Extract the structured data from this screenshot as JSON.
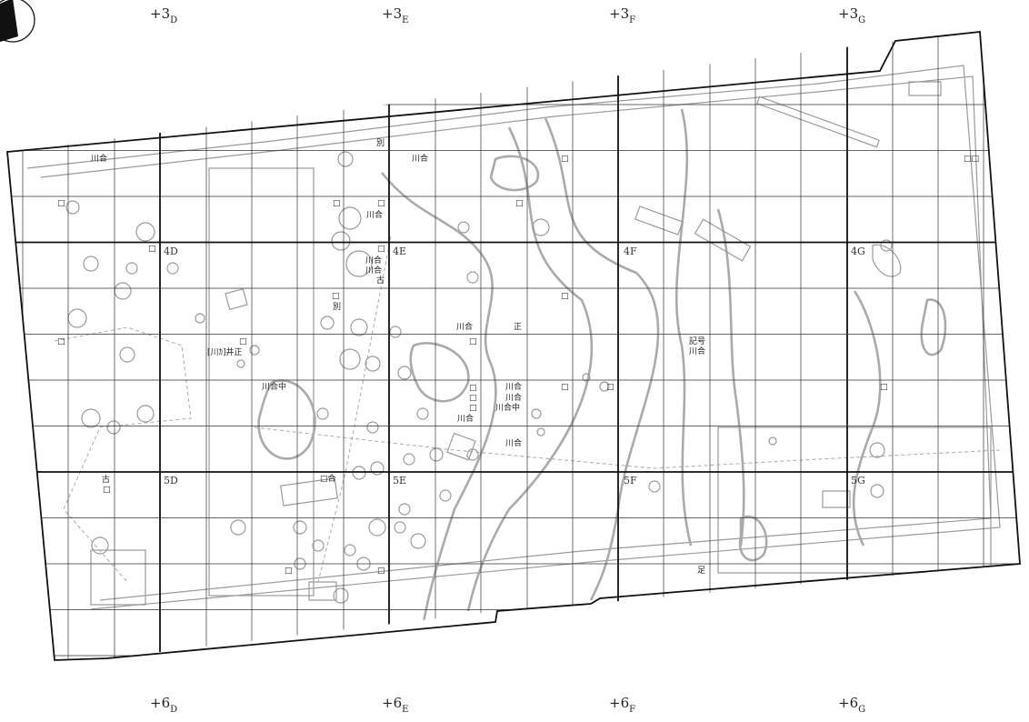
{
  "map": {
    "grid_references": [
      {
        "prefix": "+",
        "main": "3",
        "sub": "D"
      },
      {
        "prefix": "+",
        "main": "3",
        "sub": "E"
      },
      {
        "prefix": "+",
        "main": "3",
        "sub": "F"
      },
      {
        "prefix": "+",
        "main": "3",
        "sub": "G"
      },
      {
        "prefix": "+",
        "main": "6",
        "sub": "D"
      },
      {
        "prefix": "+",
        "main": "6",
        "sub": "E"
      },
      {
        "prefix": "+",
        "main": "6",
        "sub": "F"
      },
      {
        "prefix": "+",
        "main": "6",
        "sub": "G"
      }
    ],
    "cell_labels": [
      "4D",
      "4E",
      "4F",
      "4G",
      "5D",
      "5E",
      "5F",
      "5G"
    ],
    "annotations": [
      "川合",
      "別",
      "川合",
      "□",
      "□□",
      "□",
      "□",
      "□",
      "川合",
      "□",
      "□",
      "□",
      "川合",
      "川合",
      "古",
      "□",
      "別",
      "□",
      "□",
      "□",
      "[川ｶ]井正",
      "川合",
      "正",
      "□",
      "記号",
      "川合",
      "川合中",
      "□",
      "□",
      "□",
      "□",
      "□",
      "川合",
      "川合",
      "川合中",
      "川合",
      "□",
      "川合",
      "古",
      "□",
      "□合",
      "□",
      "□",
      "足"
    ]
  }
}
